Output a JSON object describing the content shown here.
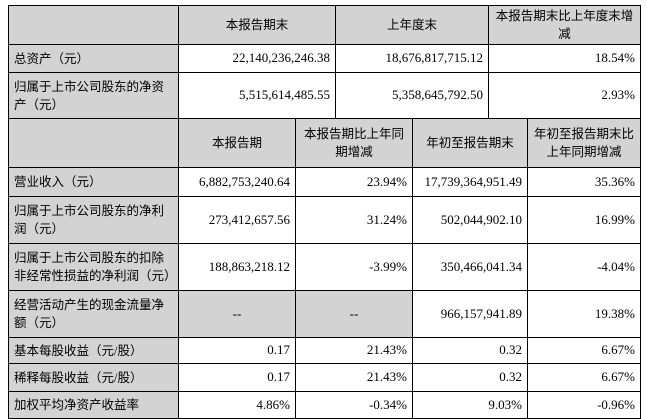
{
  "colors": {
    "header_bg": "#d3d3d3",
    "border": "#000000",
    "cell_bg": "#ffffff"
  },
  "period_end_table": {
    "headers": [
      "",
      "本报告期末",
      "上年度末",
      "本报告期末比上年度末增减"
    ],
    "rows": [
      {
        "label": "总资产（元）",
        "values": [
          "22,140,236,246.38",
          "18,676,817,715.12",
          "18.54%"
        ]
      },
      {
        "label": "归属于上市公司股东的净资产（元）",
        "values": [
          "5,515,614,485.55",
          "5,358,645,792.50",
          "2.93%"
        ]
      }
    ]
  },
  "period_results_table": {
    "headers": [
      "",
      "本报告期",
      "本报告期比上年同期增减",
      "年初至报告期末",
      "年初至报告期末比上年同期增减"
    ],
    "rows": [
      {
        "label": "营业收入（元）",
        "values": [
          "6,882,753,240.64",
          "23.94%",
          "17,739,364,951.49",
          "35.36%"
        ]
      },
      {
        "label": "归属于上市公司股东的净利润（元）",
        "values": [
          "273,412,657.56",
          "31.24%",
          "502,044,902.10",
          "16.99%"
        ]
      },
      {
        "label": "归属于上市公司股东的扣除非经常性损益的净利润（元）",
        "values": [
          "188,863,218.12",
          "-3.99%",
          "350,466,041.34",
          "-4.04%"
        ]
      },
      {
        "label": "经营活动产生的现金流量净额（元）",
        "values": [
          "--",
          "--",
          "966,157,941.89",
          "19.38%"
        ]
      },
      {
        "label": "基本每股收益（元/股）",
        "values": [
          "0.17",
          "21.43%",
          "0.32",
          "6.67%"
        ]
      },
      {
        "label": "稀释每股收益（元/股）",
        "values": [
          "0.17",
          "21.43%",
          "0.32",
          "6.67%"
        ]
      },
      {
        "label": "加权平均净资产收益率",
        "values": [
          "4.86%",
          "-0.34%",
          "9.03%",
          "-0.96%"
        ]
      }
    ]
  }
}
